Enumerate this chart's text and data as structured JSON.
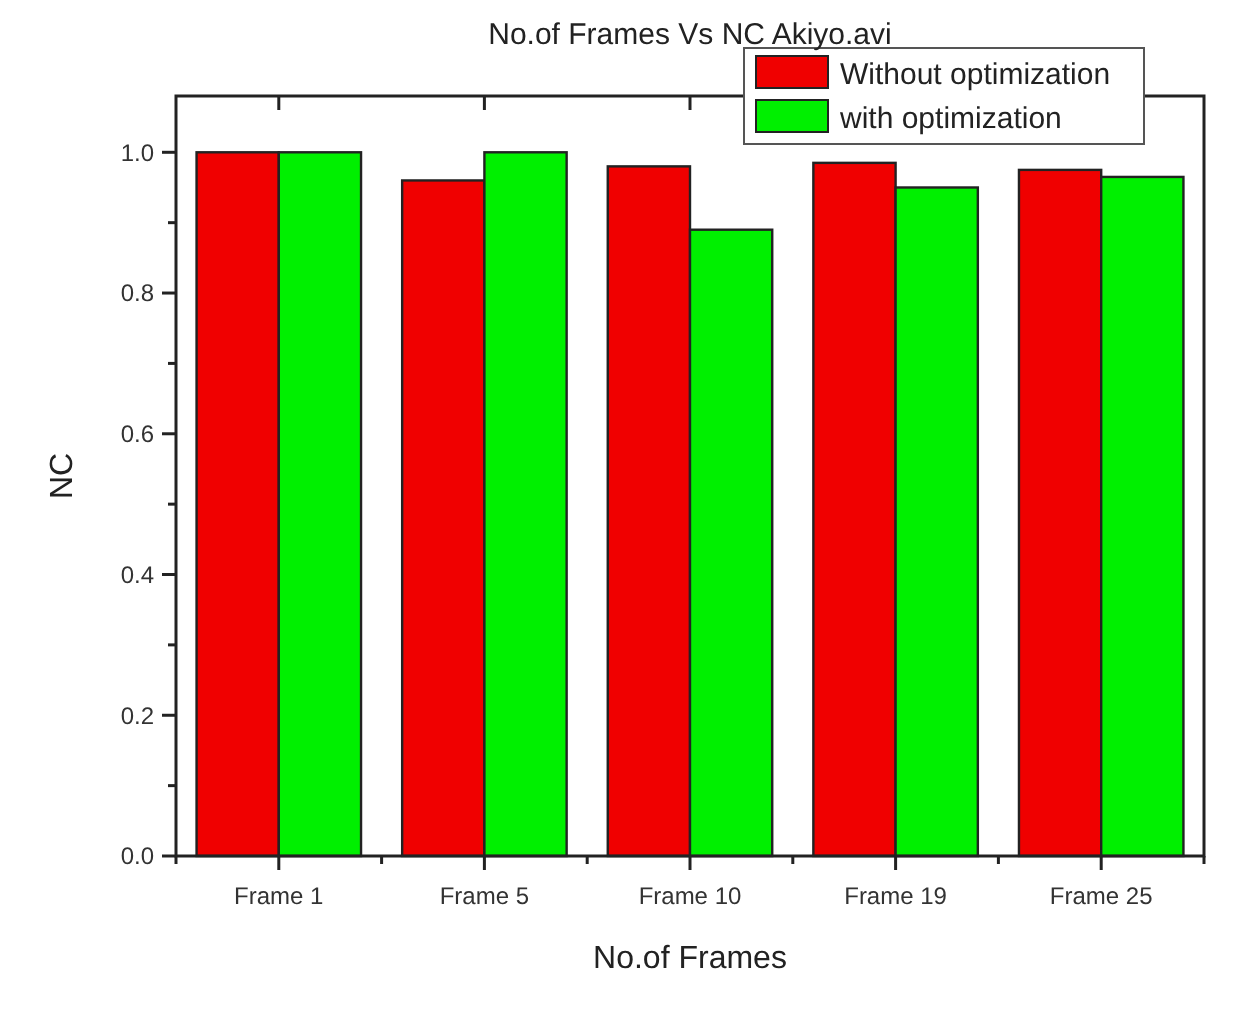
{
  "chart_data": {
    "type": "bar",
    "title": "No.of Frames Vs NC Akiyo.avi",
    "xlabel": "No.of Frames",
    "ylabel": "NC",
    "categories": [
      "Frame 1",
      "Frame 5",
      "Frame 10",
      "Frame 19",
      "Frame 25"
    ],
    "series": [
      {
        "name": "Without optimization",
        "color": "#f00000",
        "values": [
          1.0,
          0.96,
          0.98,
          0.985,
          0.975
        ]
      },
      {
        "name": "with optimization",
        "color": "#00f000",
        "values": [
          1.0,
          1.0,
          0.89,
          0.95,
          0.965
        ]
      }
    ],
    "ylim": [
      0,
      1.08
    ],
    "yticks": [
      {
        "value": 0,
        "label": "0.0"
      },
      {
        "value": 0.1,
        "label": null
      },
      0.2,
      {
        "value": 0.3,
        "label": null
      },
      0.4,
      {
        "value": 0.5,
        "label": null
      },
      0.6,
      {
        "value": 0.7,
        "label": null
      },
      0.8,
      {
        "value": 0.9,
        "label": null
      },
      {
        "value": 1.0,
        "label": "1.0"
      }
    ],
    "grid": false,
    "legend": "top right"
  }
}
